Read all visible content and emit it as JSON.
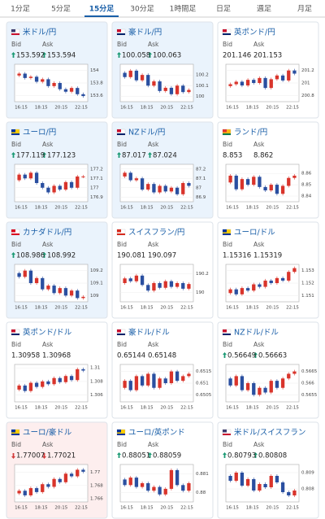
{
  "tabs": [
    "1分足",
    "5分足",
    "15分足",
    "30分足",
    "1時間足",
    "日足",
    "週足",
    "月足"
  ],
  "active_tab": 2,
  "bid_label": "Bid",
  "ask_label": "Ask",
  "time_labels": [
    "16:15",
    "18:15",
    "20:15",
    "22:15"
  ],
  "cards": [
    {
      "name": "米ドル/円",
      "bid": "153.592",
      "ask": "153.594",
      "trend": "up",
      "bg": "#eaf3fc",
      "flag": [
        "#c8102e",
        "#ffffff",
        "#3c3b6e"
      ],
      "chart": {
        "ylim": [
          153.5,
          154.1
        ],
        "yticks": [
          154,
          153.8,
          153.6
        ],
        "values": [
          153.92,
          153.95,
          153.88,
          153.9,
          153.82,
          153.86,
          153.75,
          153.8,
          153.7,
          153.66,
          153.72,
          153.62,
          153.59
        ]
      }
    },
    {
      "name": "豪ドル/円",
      "bid": "100.058",
      "ask": "100.063",
      "trend": "up",
      "bg": "#eaf3fc",
      "flag": [
        "#012169",
        "#ffffff",
        "#c8102e"
      ],
      "chart": {
        "ylim": [
          99.95,
          100.3
        ],
        "yticks": [
          100.2,
          100.1,
          100
        ],
        "values": [
          100.22,
          100.18,
          100.24,
          100.15,
          100.2,
          100.1,
          100.14,
          100.05,
          100.08,
          100.02,
          100.1,
          100.04,
          100.06
        ]
      }
    },
    {
      "name": "英ポンド/円",
      "bid": "201.146",
      "ask": "201.153",
      "bg": "#ffffff",
      "flag": [
        "#012169",
        "#ffffff",
        "#c8102e"
      ],
      "chart": {
        "ylim": [
          200.7,
          201.3
        ],
        "yticks": [
          201.2,
          201,
          200.8
        ],
        "values": [
          200.95,
          200.98,
          201.02,
          200.96,
          201.05,
          201.0,
          201.08,
          200.92,
          201.06,
          201.12,
          201.04,
          201.2,
          201.15
        ]
      }
    },
    {
      "name": "ユーロ/円",
      "bid": "177.119",
      "ask": "177.123",
      "trend": "up",
      "bg": "#eaf3fc",
      "flag": [
        "#003399",
        "#ffcc00",
        "#003399"
      ],
      "chart": {
        "ylim": [
          176.85,
          177.25
        ],
        "yticks": [
          177.2,
          177.1,
          177,
          176.9
        ],
        "values": [
          177.08,
          177.14,
          177.1,
          177.16,
          177.05,
          177.0,
          176.95,
          177.02,
          176.98,
          177.06,
          177.0,
          177.12,
          177.12
        ]
      }
    },
    {
      "name": "NZドル/円",
      "bid": "87.017",
      "ask": "87.024",
      "trend": "up",
      "bg": "#eaf3fc",
      "flag": [
        "#012169",
        "#ffffff",
        "#c8102e"
      ],
      "chart": {
        "ylim": [
          86.85,
          87.25
        ],
        "yticks": [
          87.2,
          87.1,
          87,
          86.9
        ],
        "values": [
          87.12,
          87.16,
          87.08,
          87.1,
          86.98,
          87.04,
          86.95,
          87.02,
          86.96,
          87.0,
          86.93,
          87.05,
          87.02
        ]
      }
    },
    {
      "name": "ランド/円",
      "bid": "8.853",
      "ask": "8.862",
      "bg": "#ffffff",
      "flag": [
        "#007a4d",
        "#ffb612",
        "#de3831"
      ],
      "chart": {
        "ylim": [
          8.835,
          8.868
        ],
        "yticks": [
          8.86,
          8.85,
          8.84
        ],
        "values": [
          8.852,
          8.858,
          8.846,
          8.855,
          8.85,
          8.857,
          8.848,
          8.845,
          8.85,
          8.842,
          8.849,
          8.856,
          8.858
        ]
      }
    },
    {
      "name": "カナダドル/円",
      "bid": "108.986",
      "ask": "108.992",
      "trend": "up",
      "bg": "#eaf3fc",
      "flag": [
        "#d80621",
        "#ffffff",
        "#d80621"
      ],
      "chart": {
        "ylim": [
          108.95,
          109.25
        ],
        "yticks": [
          109.2,
          109.1,
          109
        ],
        "values": [
          109.18,
          109.15,
          109.2,
          109.1,
          109.14,
          109.05,
          109.08,
          109.02,
          109.06,
          109.0,
          109.04,
          108.98,
          108.99
        ]
      }
    },
    {
      "name": "スイスフラン/円",
      "bid": "190.081",
      "ask": "190.097",
      "bg": "#ffffff",
      "flag": [
        "#d52b1e",
        "#ffffff",
        "#d52b1e"
      ],
      "chart": {
        "ylim": [
          189.9,
          190.3
        ],
        "yticks": [
          190.2,
          190
        ],
        "values": [
          190.1,
          190.15,
          190.12,
          190.18,
          190.08,
          190.02,
          190.1,
          190.05,
          190.12,
          190.06,
          190.1,
          190.04,
          190.09
        ]
      }
    },
    {
      "name": "ユーロ/ドル",
      "bid": "1.15316",
      "ask": "1.15319",
      "bg": "#ffffff",
      "flag": [
        "#003399",
        "#ffcc00",
        "#003399"
      ],
      "chart": {
        "ylim": [
          1.1505,
          1.1535
        ],
        "yticks": [
          1.153,
          1.152,
          1.151
        ],
        "values": [
          1.1512,
          1.1515,
          1.1511,
          1.1516,
          1.1514,
          1.1519,
          1.1517,
          1.1522,
          1.152,
          1.1524,
          1.1522,
          1.1529,
          1.1532
        ]
      }
    },
    {
      "name": "英ポンド/ドル",
      "bid": "1.30958",
      "ask": "1.30968",
      "bg": "#ffffff",
      "flag": [
        "#012169",
        "#ffffff",
        "#c8102e"
      ],
      "chart": {
        "ylim": [
          1.305,
          1.3105
        ],
        "yticks": [
          1.31,
          1.308,
          1.306
        ],
        "values": [
          1.3068,
          1.3074,
          1.3066,
          1.3078,
          1.3072,
          1.308,
          1.3076,
          1.3085,
          1.3079,
          1.3088,
          1.3082,
          1.3098,
          1.3096
        ]
      }
    },
    {
      "name": "豪ドル/ドル",
      "bid": "0.65144",
      "ask": "0.65148",
      "bg": "#ffffff",
      "flag": [
        "#012169",
        "#ffffff",
        "#c8102e"
      ],
      "chart": {
        "ylim": [
          0.6502,
          0.6518
        ],
        "yticks": [
          0.6515,
          0.651,
          0.6505
        ],
        "values": [
          0.6508,
          0.6511,
          0.6507,
          0.6513,
          0.6509,
          0.6514,
          0.6508,
          0.6512,
          0.651,
          0.6515,
          0.6511,
          0.6513,
          0.6514
        ]
      }
    },
    {
      "name": "NZドル/ドル",
      "bid": "0.56649",
      "ask": "0.56663",
      "trend": "up",
      "bg": "#ffffff",
      "flag": [
        "#012169",
        "#ffffff",
        "#c8102e"
      ],
      "chart": {
        "ylim": [
          0.5652,
          0.5668
        ],
        "yticks": [
          0.5665,
          0.566,
          0.5655
        ],
        "values": [
          0.5662,
          0.5659,
          0.5663,
          0.5657,
          0.566,
          0.5655,
          0.5658,
          0.5656,
          0.5661,
          0.5658,
          0.5662,
          0.5664,
          0.5665
        ]
      }
    },
    {
      "name": "ユーロ/豪ドル",
      "bid": "1.77007",
      "ask": "1.77021",
      "trend": "down",
      "bg": "#fdeeee",
      "flag": [
        "#003399",
        "#ffcc00",
        "#003399"
      ],
      "chart": {
        "ylim": [
          1.7655,
          1.7712
        ],
        "yticks": [
          1.77,
          1.768,
          1.766
        ],
        "values": [
          1.7668,
          1.7672,
          1.7665,
          1.7676,
          1.767,
          1.7682,
          1.7678,
          1.769,
          1.7685,
          1.7698,
          1.7694,
          1.7704,
          1.7701
        ]
      }
    },
    {
      "name": "ユーロ/英ポンド",
      "bid": "0.88051",
      "ask": "0.88059",
      "trend": "up",
      "bg": "#ffffff",
      "flag": [
        "#003399",
        "#ffcc00",
        "#003399"
      ],
      "chart": {
        "ylim": [
          0.8795,
          0.8815
        ],
        "yticks": [
          0.881,
          0.88
        ],
        "values": [
          0.8807,
          0.8804,
          0.8808,
          0.8803,
          0.8805,
          0.8801,
          0.8803,
          0.8799,
          0.8802,
          0.8812,
          0.8804,
          0.8801,
          0.8805
        ]
      }
    },
    {
      "name": "米ドル/スイスフラン",
      "bid": "0.80793",
      "ask": "0.80808",
      "trend": "up",
      "bg": "#ffffff",
      "flag": [
        "#c8102e",
        "#ffffff",
        "#3c3b6e"
      ],
      "chart": {
        "ylim": [
          0.8072,
          0.8095
        ],
        "yticks": [
          0.809,
          0.808
        ],
        "values": [
          0.8088,
          0.8085,
          0.809,
          0.8082,
          0.8086,
          0.8079,
          0.8083,
          0.8081,
          0.8088,
          0.8084,
          0.8078,
          0.8076,
          0.8079
        ]
      }
    }
  ]
}
